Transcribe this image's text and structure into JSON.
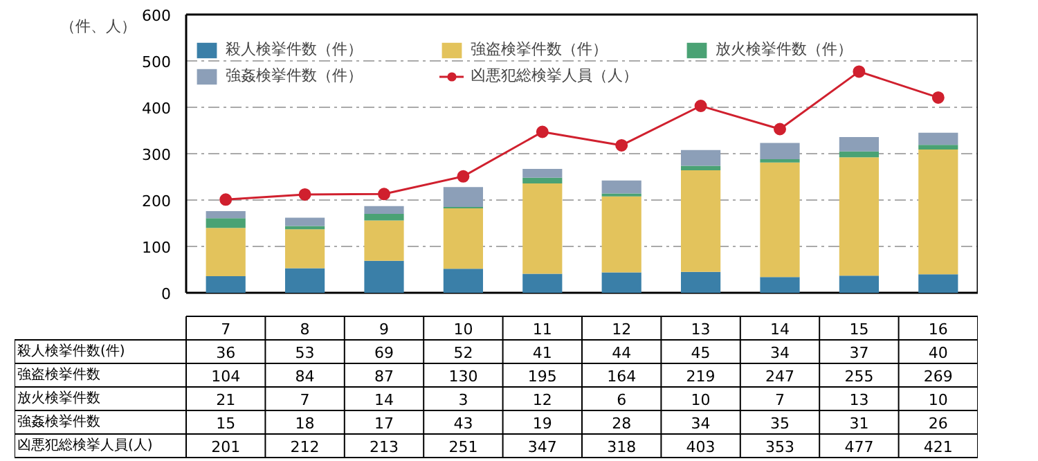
{
  "chart_data": {
    "type": "bar",
    "stacked": true,
    "ylabel": "（件、人）",
    "categories": [
      "7",
      "8",
      "9",
      "10",
      "11",
      "12",
      "13",
      "14",
      "15",
      "16"
    ],
    "series": [
      {
        "name": "殺人検挙件数（件）",
        "color": "#3a7fa8",
        "values": [
          36,
          53,
          69,
          52,
          41,
          44,
          45,
          34,
          37,
          40
        ]
      },
      {
        "name": "強盗検挙件数（件）",
        "color": "#e3c35c",
        "values": [
          104,
          84,
          87,
          130,
          195,
          164,
          219,
          247,
          255,
          269
        ]
      },
      {
        "name": "放火検挙件数（件）",
        "color": "#4aa274",
        "values": [
          21,
          7,
          14,
          3,
          12,
          6,
          10,
          7,
          13,
          10
        ]
      },
      {
        "name": "強姦検挙件数（件）",
        "color": "#8c9fb8",
        "values": [
          15,
          18,
          17,
          43,
          19,
          28,
          34,
          35,
          31,
          26
        ]
      },
      {
        "name": "凶悪犯総検挙人員（人）",
        "type": "line",
        "color": "#d0202e",
        "values": [
          201,
          212,
          213,
          251,
          347,
          318,
          403,
          353,
          477,
          421
        ]
      }
    ],
    "ylim": [
      0,
      600
    ],
    "yticks": [
      0,
      100,
      200,
      300,
      400,
      500,
      600
    ],
    "grid": "y",
    "legend": "top",
    "marker": "circle",
    "data_labels": true,
    "annotations": [
      "殺人検挙件数(件)",
      "強盗検挙件数",
      "放火検挙件数",
      "強姦検挙件数",
      "凶悪犯総検挙人員(人)"
    ]
  }
}
